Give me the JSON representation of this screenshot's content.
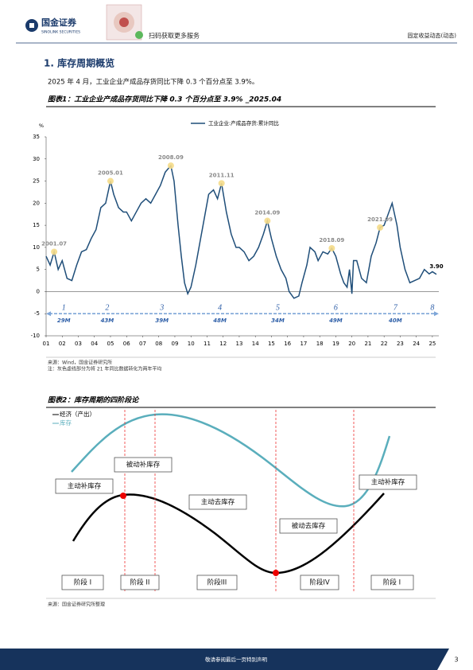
{
  "header": {
    "brand": "国金证券",
    "brand_en": "SINOLINK SECURITIES",
    "qr_text": "扫码获取更多服务",
    "report_type": "固定收益动态(动态)"
  },
  "section": {
    "heading": "1. 库存周期概览",
    "paragraph": "2025 年 4 月，工业企业产成品存货同比下降 0.3 个百分点至 3.9%。"
  },
  "figure1": {
    "caption": "图表1：工业企业产成品存货同比下降 0.3 个百分点至 3.9% _2025.04",
    "source": "来源：Wind，国金证券研究所",
    "note": "注：灰色虚线部分为将 21 年同比数据转化为两年平均"
  },
  "chart_data": {
    "type": "line",
    "ylabel": "%",
    "x": [
      2001.0,
      2001.25,
      2001.5,
      2001.75,
      2002.0,
      2002.3,
      2002.6,
      2002.9,
      2003.2,
      2003.5,
      2003.8,
      2004.1,
      2004.4,
      2004.7,
      2005.0,
      2005.2,
      2005.5,
      2005.8,
      2006.0,
      2006.3,
      2006.6,
      2006.9,
      2007.2,
      2007.5,
      2007.8,
      2008.1,
      2008.4,
      2008.75,
      2008.95,
      2009.2,
      2009.4,
      2009.6,
      2009.8,
      2010.0,
      2010.3,
      2010.6,
      2010.9,
      2011.1,
      2011.4,
      2011.65,
      2011.9,
      2012.2,
      2012.5,
      2012.8,
      2013.0,
      2013.3,
      2013.6,
      2013.9,
      2014.2,
      2014.5,
      2014.75,
      2015.0,
      2015.3,
      2015.6,
      2015.9,
      2016.1,
      2016.4,
      2016.7,
      2016.9,
      2017.2,
      2017.4,
      2017.7,
      2017.9,
      2018.2,
      2018.5,
      2018.75,
      2019.0,
      2019.3,
      2019.5,
      2019.7,
      2019.85,
      2020.0,
      2020.1,
      2020.3,
      2020.6,
      2020.9,
      2021.2,
      2021.5,
      2021.75,
      2022.0,
      2022.3,
      2022.5,
      2022.8,
      2023.0,
      2023.3,
      2023.6,
      2023.9,
      2024.2,
      2024.5,
      2024.8,
      2025.0,
      2025.25
    ],
    "series": [
      {
        "name": "工业企业:产成品存货:累计同比",
        "color": "#1f4e79",
        "values": [
          8,
          6,
          9,
          5,
          7,
          3,
          2.5,
          6,
          9,
          9.5,
          12,
          14,
          19,
          20,
          25,
          22,
          19,
          18,
          18,
          16,
          18,
          20,
          21,
          20,
          22,
          24,
          27,
          28.5,
          25,
          15,
          8,
          2,
          -0.5,
          1,
          6,
          12,
          18,
          22,
          23,
          21,
          24.5,
          18,
          13,
          10,
          10,
          9,
          7,
          8,
          10,
          13,
          16,
          12,
          8,
          5,
          3,
          0,
          -1.5,
          -1,
          2,
          6,
          10,
          9,
          7,
          9,
          8.5,
          9.8,
          8,
          4,
          2,
          1,
          5,
          -0.5,
          7,
          7,
          3,
          2,
          8,
          11,
          14.5,
          15,
          18,
          20,
          15,
          10,
          5,
          2,
          2.5,
          3,
          5,
          4,
          4.5,
          3.9
        ]
      }
    ],
    "xlim": [
      2001,
      2025.4
    ],
    "xticks": [
      {
        "value": 2001,
        "label": "01"
      },
      {
        "value": 2002,
        "label": "02"
      },
      {
        "value": 2003,
        "label": "03"
      },
      {
        "value": 2004,
        "label": "04"
      },
      {
        "value": 2005,
        "label": "05"
      },
      {
        "value": 2006,
        "label": "06"
      },
      {
        "value": 2007,
        "label": "07"
      },
      {
        "value": 2008,
        "label": "08"
      },
      {
        "value": 2009,
        "label": "09"
      },
      {
        "value": 2010,
        "label": "10"
      },
      {
        "value": 2011,
        "label": "11"
      },
      {
        "value": 2012,
        "label": "12"
      },
      {
        "value": 2013,
        "label": "13"
      },
      {
        "value": 2014,
        "label": "14"
      },
      {
        "value": 2015,
        "label": "15"
      },
      {
        "value": 2016,
        "label": "16"
      },
      {
        "value": 2017,
        "label": "17"
      },
      {
        "value": 2018,
        "label": "18"
      },
      {
        "value": 2019,
        "label": "19"
      },
      {
        "value": 2020,
        "label": "20"
      },
      {
        "value": 2021,
        "label": "21"
      },
      {
        "value": 2022,
        "label": "22"
      },
      {
        "value": 2023,
        "label": "23"
      },
      {
        "value": 2024,
        "label": "24"
      },
      {
        "value": 2025,
        "label": "25"
      }
    ],
    "ylim": [
      -10,
      35
    ],
    "yticks": [
      -10,
      -5,
      0,
      5,
      10,
      15,
      20,
      25,
      30,
      35
    ],
    "grid": false,
    "annotations": [
      {
        "x": 2001.5,
        "y": 9,
        "label": "2001.07"
      },
      {
        "x": 2005.0,
        "y": 25,
        "label": "2005.01"
      },
      {
        "x": 2008.75,
        "y": 28.5,
        "label": "2008.09"
      },
      {
        "x": 2011.9,
        "y": 24.5,
        "label": "2011.11"
      },
      {
        "x": 2014.75,
        "y": 16,
        "label": "2014.09"
      },
      {
        "x": 2018.75,
        "y": 9.8,
        "label": "2018.09"
      },
      {
        "x": 2021.75,
        "y": 14.5,
        "label": "2021.09"
      }
    ],
    "end_label": {
      "value": 3.9,
      "label": "3.90"
    },
    "stage_line_y": -5,
    "stages": [
      {
        "label": "1",
        "duration": "29M",
        "x": 2002.1
      },
      {
        "label": "2",
        "duration": "43M",
        "x": 2004.8
      },
      {
        "label": "3",
        "duration": "39M",
        "x": 2008.2
      },
      {
        "label": "4",
        "duration": "48M",
        "x": 2011.8
      },
      {
        "label": "5",
        "duration": "34M",
        "x": 2015.4
      },
      {
        "label": "6",
        "duration": "49M",
        "x": 2019.0
      },
      {
        "label": "7",
        "duration": "40M",
        "x": 2022.7
      },
      {
        "label": "8",
        "x": 2025.0
      }
    ]
  },
  "figure2": {
    "caption": "图表2：库存周期的四阶段论",
    "legend": [
      "经济（产出）",
      "库存"
    ],
    "phases": [
      "被动补库存",
      "主动补库存",
      "主动去库存",
      "被动去库存",
      "主动补库存"
    ],
    "stages": [
      "阶段 I",
      "阶段 II",
      "阶段III",
      "阶段IV",
      "阶段 I"
    ],
    "source": "来源：国金证券研究所整理"
  },
  "footer": {
    "disclaimer": "敬请参阅最后一页特别声明",
    "page": "3"
  }
}
